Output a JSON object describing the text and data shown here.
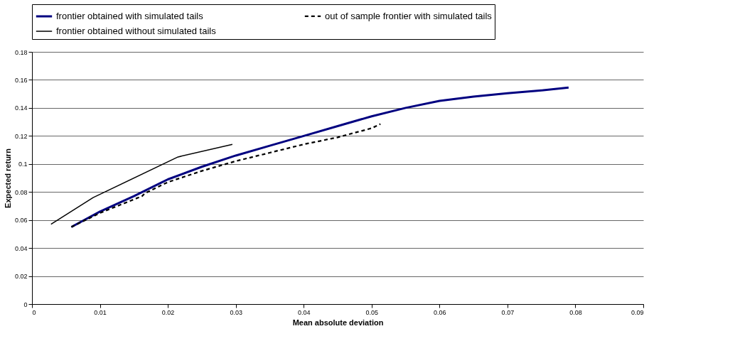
{
  "chart_data": {
    "type": "line",
    "xlabel": "Mean absolute deviation",
    "ylabel": "Expected return",
    "xlim": [
      0,
      0.09
    ],
    "xticks": [
      0,
      0.01,
      0.02,
      0.03,
      0.04,
      0.05,
      0.06,
      0.07,
      0.08,
      0.09
    ],
    "ylim": [
      0,
      0.18
    ],
    "yticks": [
      0,
      0.02,
      0.04,
      0.06,
      0.08,
      0.1,
      0.12,
      0.14,
      0.16,
      0.18
    ],
    "grid": "y",
    "legend": "top",
    "marker": "none",
    "series": [
      {
        "name": "frontier obtained with simulated tails",
        "color": "#000080",
        "line_style": "solid",
        "x": [
          0.0058,
          0.01,
          0.015,
          0.02,
          0.025,
          0.03,
          0.035,
          0.04,
          0.045,
          0.05,
          0.055,
          0.06,
          0.065,
          0.07,
          0.075,
          0.079
        ],
        "values": [
          0.055,
          0.066,
          0.077,
          0.089,
          0.098,
          0.106,
          0.113,
          0.12,
          0.127,
          0.134,
          0.14,
          0.145,
          0.148,
          0.1505,
          0.1525,
          0.1545
        ]
      },
      {
        "name": "out of sample frontier with simulated tails",
        "color": "#000000",
        "line_style": "dashed",
        "x": [
          0.0058,
          0.01,
          0.0162,
          0.0166,
          0.02,
          0.025,
          0.03,
          0.035,
          0.04,
          0.045,
          0.05,
          0.0513
        ],
        "values": [
          0.055,
          0.065,
          0.077,
          0.079,
          0.087,
          0.095,
          0.102,
          0.108,
          0.114,
          0.119,
          0.1255,
          0.1285
        ]
      },
      {
        "name": "frontier obtained without simulated tails",
        "color": "#000000",
        "line_style": "solid",
        "x": [
          0.0028,
          0.009,
          0.0215,
          0.0295
        ],
        "values": [
          0.057,
          0.076,
          0.105,
          0.114
        ]
      }
    ]
  }
}
